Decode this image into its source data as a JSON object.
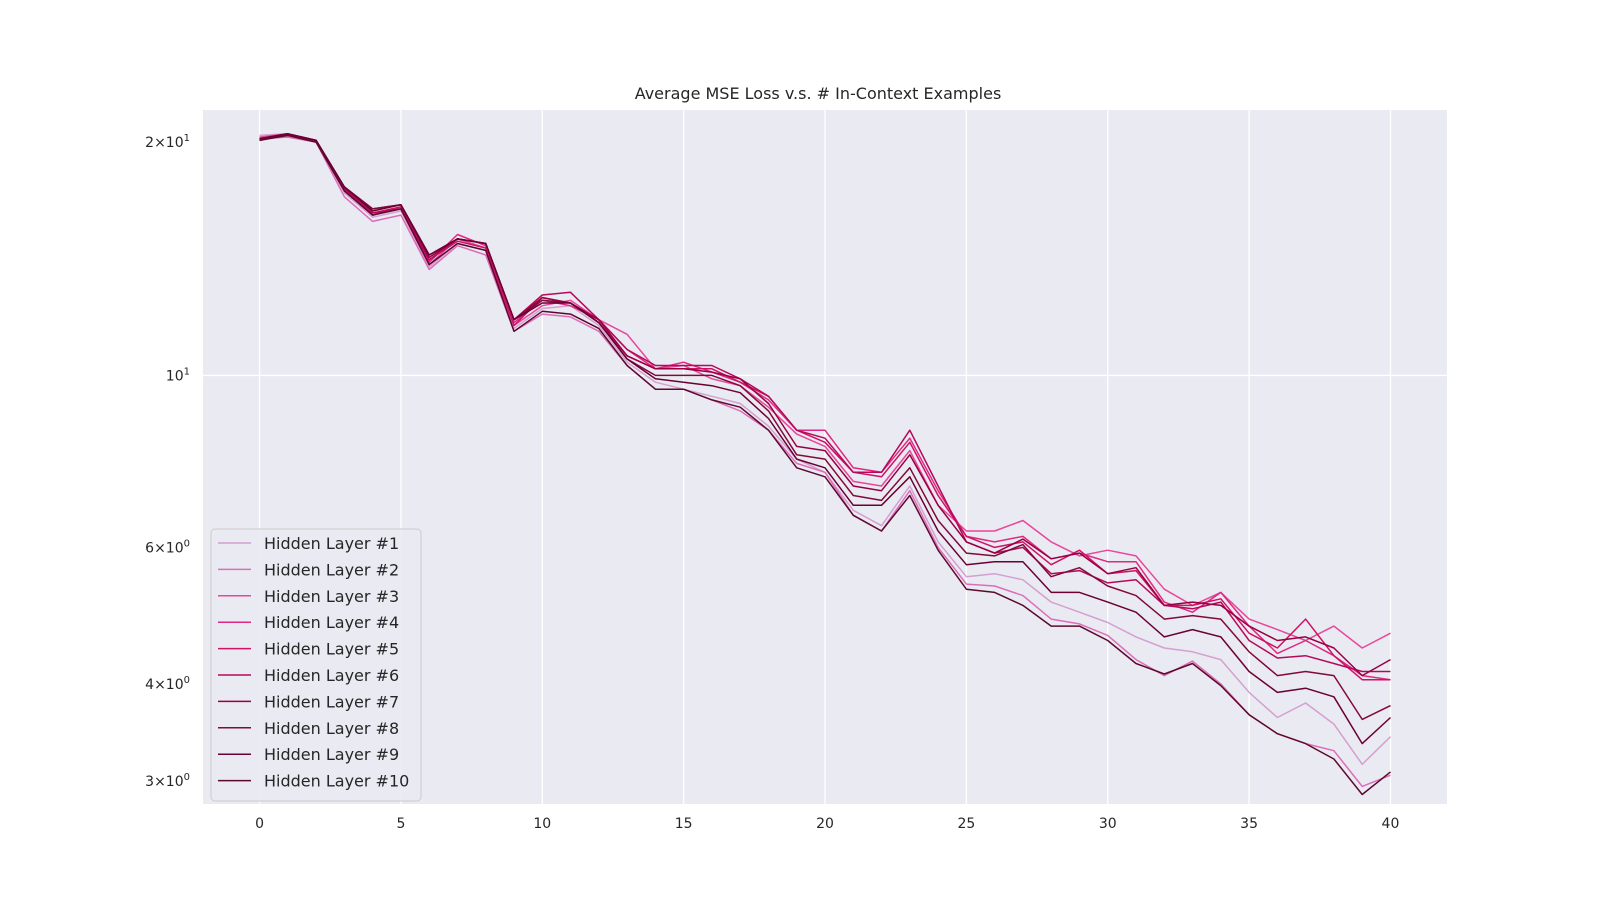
{
  "chart_data": {
    "type": "line",
    "title": "Average MSE Loss v.s. # In-Context Examples",
    "xlabel": "",
    "ylabel": "",
    "xlim": [
      -2,
      42
    ],
    "ylim": [
      2.8,
      22
    ],
    "yscale": "log",
    "grid": true,
    "legend_position": "bottom-left",
    "background": "#eaeaf2",
    "x_ticks": [
      0,
      5,
      10,
      15,
      20,
      25,
      30,
      35,
      40
    ],
    "y_ticks": [
      {
        "value": 20,
        "mant": "2",
        "exp": "1"
      },
      {
        "value": 10,
        "mant": "",
        "exp": "1"
      },
      {
        "value": 6,
        "mant": "6",
        "exp": "0"
      },
      {
        "value": 4,
        "mant": "4",
        "exp": "0"
      },
      {
        "value": 3,
        "mant": "3",
        "exp": "0"
      }
    ],
    "y_tick_times": "×",
    "y_tick_base": "10",
    "x": [
      0,
      1,
      2,
      3,
      4,
      5,
      6,
      7,
      8,
      9,
      10,
      11,
      12,
      13,
      14,
      15,
      16,
      17,
      18,
      19,
      20,
      21,
      22,
      23,
      24,
      25,
      26,
      27,
      28,
      29,
      30,
      31,
      32,
      33,
      34,
      35,
      36,
      37,
      38,
      39,
      40
    ],
    "series": [
      {
        "name": "Hidden Layer #1",
        "color": "#d4a0cf",
        "values": [
          20.4,
          20.5,
          20.1,
          17.2,
          16.0,
          16.3,
          13.8,
          14.8,
          14.5,
          11.5,
          12.2,
          12.3,
          11.6,
          10.4,
          9.8,
          9.6,
          9.4,
          9.2,
          8.6,
          7.8,
          7.5,
          6.7,
          6.4,
          7.2,
          6.1,
          5.5,
          5.55,
          5.45,
          5.1,
          4.95,
          4.8,
          4.6,
          4.45,
          4.4,
          4.3,
          3.9,
          3.62,
          3.78,
          3.55,
          3.15,
          3.42
        ]
      },
      {
        "name": "Hidden Layer #2",
        "color": "#dd6dba",
        "values": [
          20.2,
          20.3,
          20.0,
          17.0,
          15.8,
          16.1,
          13.7,
          14.7,
          14.3,
          11.4,
          12.0,
          11.9,
          11.4,
          10.3,
          9.6,
          9.6,
          9.3,
          9.0,
          8.5,
          7.7,
          7.5,
          6.6,
          6.3,
          7.1,
          6.0,
          5.38,
          5.35,
          5.2,
          4.85,
          4.78,
          4.62,
          4.3,
          4.1,
          4.28,
          4.0,
          3.65,
          3.45,
          3.35,
          3.28,
          2.95,
          3.05
        ]
      },
      {
        "name": "Hidden Layer #3",
        "color": "#e8479c",
        "values": [
          20.3,
          20.5,
          20.1,
          17.3,
          16.1,
          16.4,
          13.9,
          15.0,
          14.6,
          11.6,
          12.3,
          12.5,
          11.8,
          11.3,
          10.2,
          10.3,
          9.9,
          9.7,
          9.1,
          8.4,
          8.1,
          7.3,
          7.2,
          8.0,
          6.8,
          6.3,
          6.3,
          6.5,
          6.1,
          5.85,
          5.95,
          5.85,
          5.3,
          5.05,
          5.25,
          4.85,
          4.7,
          4.55,
          4.75,
          4.45,
          4.65
        ]
      },
      {
        "name": "Hidden Layer #4",
        "color": "#e02882",
        "values": [
          20.2,
          20.4,
          20.1,
          17.3,
          16.1,
          16.5,
          14.0,
          15.2,
          14.7,
          11.7,
          12.5,
          12.3,
          11.8,
          10.8,
          10.2,
          10.4,
          10.1,
          9.8,
          9.3,
          8.5,
          8.5,
          7.6,
          7.5,
          8.3,
          7.1,
          6.2,
          6.1,
          6.2,
          5.8,
          5.9,
          5.75,
          5.75,
          5.1,
          4.95,
          5.25,
          4.75,
          4.38,
          4.55,
          4.35,
          4.1,
          4.05
        ]
      },
      {
        "name": "Hidden Layer #5",
        "color": "#ce1264",
        "values": [
          20.2,
          20.4,
          20.0,
          17.4,
          16.2,
          16.5,
          14.1,
          14.9,
          14.6,
          11.6,
          12.6,
          12.4,
          11.7,
          10.6,
          10.2,
          10.2,
          10.2,
          9.8,
          9.4,
          8.5,
          8.2,
          7.5,
          7.4,
          8.2,
          7.0,
          6.2,
          6.0,
          6.1,
          5.7,
          5.95,
          5.55,
          5.6,
          5.05,
          5.05,
          5.15,
          4.65,
          4.45,
          4.85,
          4.35,
          4.05,
          4.05
        ]
      },
      {
        "name": "Hidden Layer #6",
        "color": "#b5095a",
        "values": [
          20.1,
          20.5,
          20.1,
          17.4,
          16.2,
          16.4,
          14.1,
          15.0,
          14.8,
          11.8,
          12.7,
          12.8,
          11.8,
          10.8,
          10.3,
          10.3,
          10.3,
          9.9,
          9.4,
          8.5,
          8.3,
          7.5,
          7.5,
          8.5,
          7.2,
          6.1,
          5.9,
          6.0,
          5.55,
          5.6,
          5.4,
          5.45,
          5.05,
          5.0,
          5.1,
          4.55,
          4.32,
          4.35,
          4.25,
          4.15,
          4.15
        ]
      },
      {
        "name": "Hidden Layer #7",
        "color": "#980043",
        "values": [
          20.2,
          20.5,
          20.1,
          17.5,
          16.4,
          16.6,
          14.2,
          15.0,
          14.8,
          11.8,
          12.6,
          12.4,
          11.8,
          10.6,
          10.2,
          10.2,
          10.1,
          9.9,
          9.2,
          8.1,
          8.0,
          7.2,
          7.1,
          7.9,
          6.8,
          6.1,
          5.9,
          6.15,
          5.8,
          5.9,
          5.55,
          5.65,
          5.05,
          5.1,
          5.05,
          4.75,
          4.55,
          4.6,
          4.45,
          4.1,
          4.3
        ]
      },
      {
        "name": "Hidden Layer #8",
        "color": "#800a3a",
        "values": [
          20.2,
          20.5,
          20.1,
          17.5,
          16.4,
          16.6,
          14.3,
          15.0,
          14.8,
          11.8,
          12.5,
          12.4,
          11.7,
          10.5,
          10.0,
          10.0,
          10.0,
          9.7,
          9.0,
          7.9,
          7.8,
          7.0,
          6.9,
          7.6,
          6.5,
          5.9,
          5.85,
          6.05,
          5.5,
          5.65,
          5.35,
          5.2,
          4.85,
          4.9,
          4.85,
          4.4,
          4.1,
          4.15,
          4.1,
          3.6,
          3.75
        ]
      },
      {
        "name": "Hidden Layer #9",
        "color": "#6b0032",
        "values": [
          20.2,
          20.5,
          20.1,
          17.5,
          16.3,
          16.6,
          14.3,
          15.0,
          14.8,
          11.8,
          12.4,
          12.4,
          11.7,
          10.5,
          9.9,
          9.8,
          9.7,
          9.5,
          8.8,
          7.8,
          7.6,
          6.8,
          6.8,
          7.4,
          6.3,
          5.7,
          5.75,
          5.75,
          5.25,
          5.25,
          5.1,
          4.95,
          4.6,
          4.7,
          4.6,
          4.15,
          3.9,
          3.95,
          3.85,
          3.35,
          3.62
        ]
      },
      {
        "name": "Hidden Layer #10",
        "color": "#5c0a2c",
        "values": [
          20.1,
          20.4,
          20.0,
          17.3,
          16.1,
          16.4,
          13.9,
          14.8,
          14.5,
          11.4,
          12.1,
          12.0,
          11.5,
          10.3,
          9.6,
          9.6,
          9.3,
          9.1,
          8.5,
          7.6,
          7.4,
          6.6,
          6.3,
          7.0,
          5.95,
          5.3,
          5.25,
          5.05,
          4.75,
          4.75,
          4.55,
          4.25,
          4.12,
          4.25,
          3.98,
          3.65,
          3.45,
          3.35,
          3.2,
          2.88,
          3.08
        ]
      }
    ]
  }
}
